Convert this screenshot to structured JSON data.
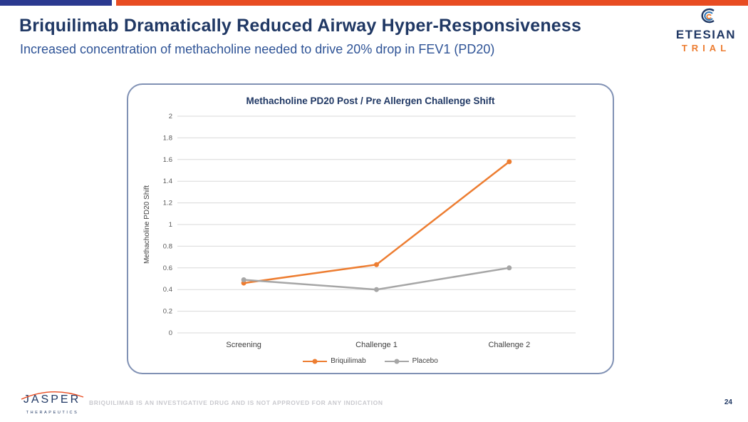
{
  "slide": {
    "title": "Briquilimab Dramatically Reduced Airway Hyper-Responsiveness",
    "subtitle": "Increased concentration of methacholine needed to drive 20% drop in FEV1 (PD20)",
    "footer_disclaimer": "BRIQUILIMAB IS AN INVESTIGATIVE DRUG AND IS NOT APPROVED FOR ANY INDICATION",
    "page_number": "24"
  },
  "logos": {
    "etesian_name": "ETESIAN",
    "etesian_trial": "TRIAL",
    "jasper_name": "JASPER",
    "jasper_sub": "THERAPEUTICS"
  },
  "colors": {
    "title_navy": "#203864",
    "subtitle_blue": "#2E5396",
    "stripe_blue": "#2B3990",
    "stripe_red": "#E84C22",
    "brand_orange": "#ED7D31",
    "series_gray": "#A6A6A6",
    "gridline": "#D9D9D9",
    "panel_border": "#8091B4",
    "axis_text": "#595959"
  },
  "chart_data": {
    "type": "line",
    "title": "Methacholine PD20 Post / Pre Allergen Challenge Shift",
    "categories": [
      "Screening",
      "Challenge 1",
      "Challenge 2"
    ],
    "series": [
      {
        "name": "Briquilimab",
        "color": "#ED7D31",
        "values": [
          0.46,
          0.63,
          1.58
        ]
      },
      {
        "name": "Placebo",
        "color": "#A6A6A6",
        "values": [
          0.49,
          0.4,
          0.6
        ]
      }
    ],
    "xlabel": "",
    "ylabel": "Methacholine PD20 Shift",
    "ylim": [
      0,
      2
    ],
    "ytick_step": 0.2,
    "grid": true,
    "legend_position": "bottom"
  }
}
